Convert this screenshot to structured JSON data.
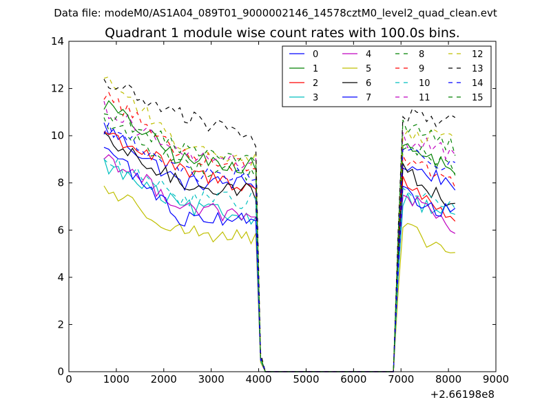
{
  "header": {
    "data_file": "Data file: modeM0/AS1A04_089T01_9000002146_14578cztM0_level2_quad_clean.evt"
  },
  "chart_data": {
    "type": "line",
    "title": "Quadrant 1 module wise count rates with 100.0s bins.",
    "xlabel": "",
    "ylabel": "",
    "x_offset_label": "+2.66198e8",
    "xlim": [
      0,
      9000
    ],
    "ylim": [
      0,
      14
    ],
    "xticks": [
      0,
      1000,
      2000,
      3000,
      4000,
      5000,
      6000,
      7000,
      8000,
      9000
    ],
    "yticks": [
      0,
      2,
      4,
      6,
      8,
      10,
      12,
      14
    ],
    "grid": false,
    "legend_position": "top-right",
    "legend_columns": 4,
    "segments": [
      {
        "start": 740,
        "step": 100,
        "count": 33
      },
      {
        "start": 4040,
        "step": 100,
        "count": 1
      },
      {
        "start": 4140,
        "step": 100,
        "count": 28
      },
      {
        "start": 6940,
        "step": 100,
        "count": 13
      }
    ],
    "series": [
      {
        "name": "0",
        "color": "#0000ff",
        "dash": "solid",
        "start": 10.4,
        "mid": 8.0,
        "end": 8.0,
        "low": 0.6,
        "recover": 8.8,
        "final": 8.0
      },
      {
        "name": "1",
        "color": "#008000",
        "dash": "solid",
        "start": 11.4,
        "mid": 9.0,
        "end": 8.7,
        "low": 0.6,
        "recover": 9.6,
        "final": 8.6
      },
      {
        "name": "2",
        "color": "#ff0000",
        "dash": "solid",
        "start": 10.2,
        "mid": 8.5,
        "end": 7.8,
        "low": 0.5,
        "recover": 8.2,
        "final": 6.5
      },
      {
        "name": "3",
        "color": "#00bfbf",
        "dash": "solid",
        "start": 8.8,
        "mid": 7.0,
        "end": 6.5,
        "low": 0.5,
        "recover": 7.4,
        "final": 6.7
      },
      {
        "name": "4",
        "color": "#bf00bf",
        "dash": "solid",
        "start": 9.2,
        "mid": 7.1,
        "end": 6.4,
        "low": 0.5,
        "recover": 7.8,
        "final": 5.8
      },
      {
        "name": "5",
        "color": "#bfbf00",
        "dash": "solid",
        "start": 7.8,
        "mid": 6.0,
        "end": 5.6,
        "low": 0.4,
        "recover": 6.2,
        "final": 4.9
      },
      {
        "name": "6",
        "color": "#000000",
        "dash": "solid",
        "start": 9.8,
        "mid": 8.0,
        "end": 7.6,
        "low": 0.6,
        "recover": 8.8,
        "final": 6.9
      },
      {
        "name": "7",
        "color": "#0000ff",
        "dash": "solid",
        "start": 9.6,
        "mid": 6.5,
        "end": 6.6,
        "low": 0.5,
        "recover": 7.6,
        "final": 6.6
      },
      {
        "name": "8",
        "color": "#008000",
        "dash": "dashed",
        "start": 10.6,
        "mid": 8.8,
        "end": 8.3,
        "low": 0.6,
        "recover": 9.7,
        "final": 8.6
      },
      {
        "name": "9",
        "color": "#ff0000",
        "dash": "dashed",
        "start": 11.8,
        "mid": 9.3,
        "end": 8.6,
        "low": 0.6,
        "recover": 9.3,
        "final": 8.0
      },
      {
        "name": "10",
        "color": "#00bfbf",
        "dash": "dashed",
        "start": 9.0,
        "mid": 7.4,
        "end": 7.2,
        "low": 0.5,
        "recover": 7.7,
        "final": 7.0
      },
      {
        "name": "11",
        "color": "#bf00bf",
        "dash": "dashed",
        "start": 11.2,
        "mid": 9.2,
        "end": 8.8,
        "low": 0.6,
        "recover": 9.9,
        "final": 9.2
      },
      {
        "name": "12",
        "color": "#bfbf00",
        "dash": "dashed",
        "start": 12.6,
        "mid": 9.6,
        "end": 9.0,
        "low": 0.7,
        "recover": 10.2,
        "final": 9.8
      },
      {
        "name": "13",
        "color": "#000000",
        "dash": "dashed",
        "start": 12.3,
        "mid": 10.9,
        "end": 9.8,
        "low": 0.8,
        "recover": 10.9,
        "final": 10.6
      },
      {
        "name": "14",
        "color": "#0000ff",
        "dash": "dashed",
        "start": 10.4,
        "mid": 8.4,
        "end": 8.3,
        "low": 0.6,
        "recover": 9.4,
        "final": 8.6
      },
      {
        "name": "15",
        "color": "#008000",
        "dash": "dashed",
        "start": 11.0,
        "mid": 9.5,
        "end": 8.9,
        "low": 0.6,
        "recover": 10.5,
        "final": 9.5
      }
    ]
  }
}
